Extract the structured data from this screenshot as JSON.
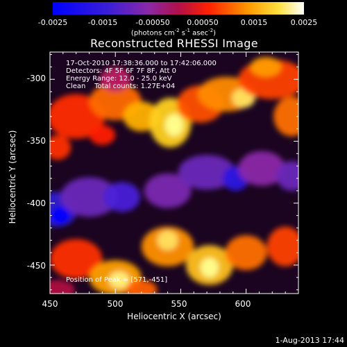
{
  "colorbar": {
    "ticks": [
      "-0.0025",
      "-0.0015",
      "-0.00050",
      "0.00050",
      "0.0015",
      "0.0025"
    ],
    "label_prefix": "(photons cm",
    "label_mid1": " s",
    "label_mid2": " asec",
    "label_sup": "-2",
    "label_sup2": "-1",
    "label_sup3": "-2",
    "label_suffix": ")"
  },
  "chart_data": {
    "type": "heatmap",
    "title": "Reconstructed RHESSI Image",
    "xlabel": "Heliocentric X (arcsec)",
    "ylabel": "Heliocentric Y (arcsec)",
    "xlim": [
      450,
      640
    ],
    "ylim": [
      -473,
      -278
    ],
    "xticks": [
      "450",
      "500",
      "550",
      "600"
    ],
    "yticks": [
      "-300",
      "-350",
      "-400",
      "-450"
    ],
    "color_range": [
      -0.0025,
      0.0025
    ],
    "colormap": "blue-purple-red-yellow-white",
    "features": [
      {
        "kind": "negative-band",
        "from": [
          450,
          -405
        ],
        "to": [
          640,
          -355
        ]
      },
      {
        "kind": "positive-band",
        "from": [
          450,
          -355
        ],
        "to": [
          640,
          -300
        ]
      },
      {
        "kind": "positive-band",
        "from": [
          450,
          -460
        ],
        "to": [
          640,
          -410
        ]
      }
    ]
  },
  "annotation": {
    "line1": "17-Oct-2010 17:38:36.000 to 17:42:06.000",
    "line2": "Detectors: 4F 5F 6F 7F 8F, Att 0",
    "line3": "Energy Range: 12.0 - 25.0 keV",
    "line4": "Clean    Total counts: 1.27E+04",
    "position": "Position of Peak = [571,-451]"
  },
  "timestamp": "1-Aug-2013 17:44"
}
